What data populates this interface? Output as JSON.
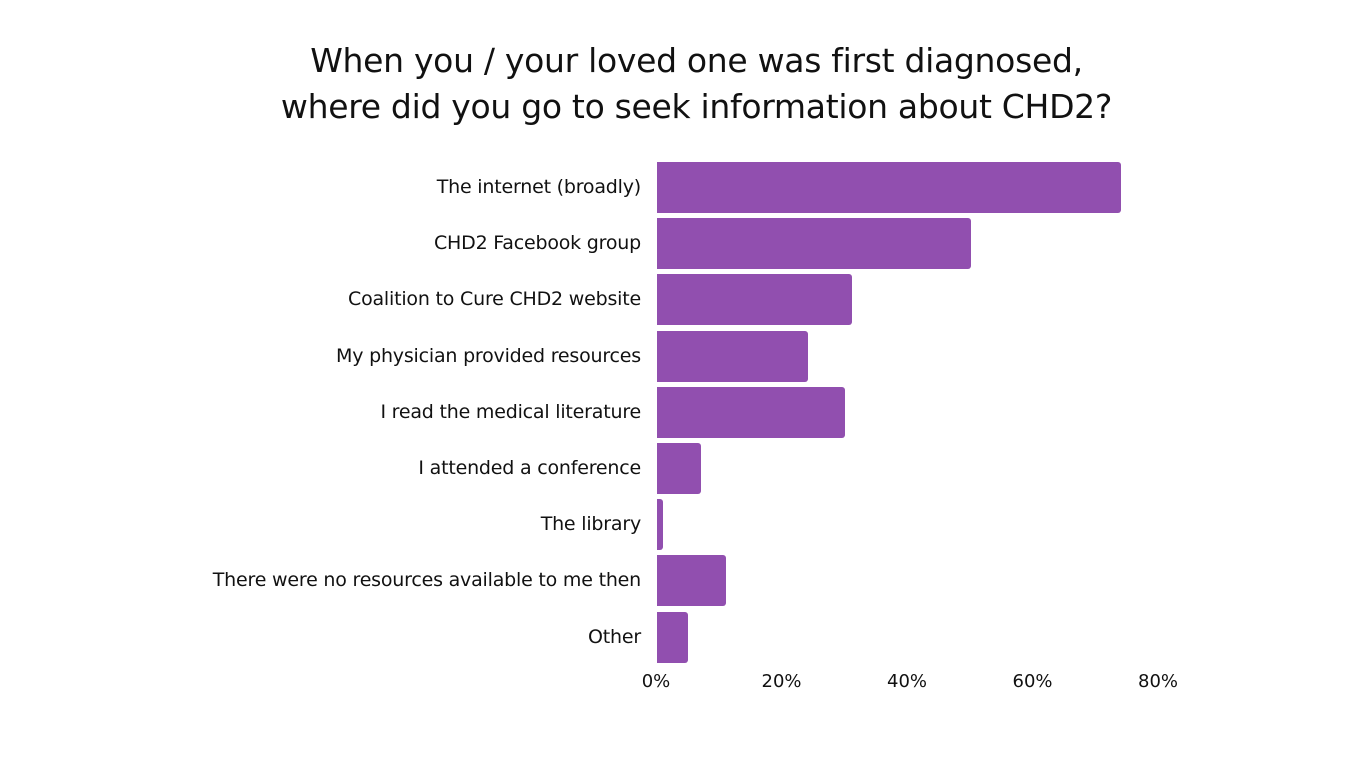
{
  "chart_data": {
    "type": "bar",
    "orientation": "horizontal",
    "title": "When you / your loved one was first diagnosed, where did you go to seek information about CHD2?",
    "title_lines": [
      "When you / your loved one was first diagnosed,",
      "where did you go to seek information about CHD2?"
    ],
    "categories": [
      "The internet (broadly)",
      "CHD2 Facebook group",
      "Coalition to Cure CHD2 website",
      "My physician provided resources",
      "I read the medical literature",
      "I attended a conference",
      "The library",
      "There were no resources available to me then",
      "Other"
    ],
    "values": [
      74,
      50,
      31,
      24,
      30,
      7,
      1,
      11,
      5
    ],
    "value_unit": "%",
    "xlabel": "",
    "ylabel": "",
    "xlim": [
      0,
      80
    ],
    "x_ticks": [
      "0%",
      "20%",
      "40%",
      "60%",
      "80%"
    ],
    "x_tick_values": [
      0,
      20,
      40,
      60,
      80
    ],
    "grid": false,
    "legend": null,
    "bar_color": "#914FAF"
  }
}
